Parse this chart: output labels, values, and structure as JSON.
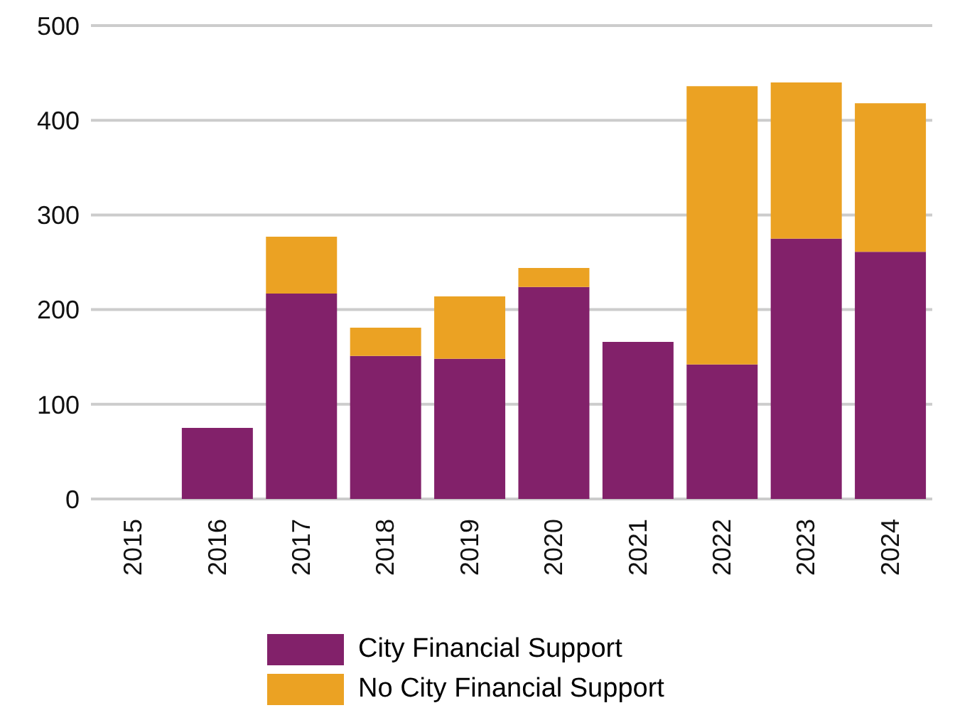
{
  "chart_data": {
    "type": "bar",
    "stacked": true,
    "categories": [
      "2015",
      "2016",
      "2017",
      "2018",
      "2019",
      "2020",
      "2021",
      "2022",
      "2023",
      "2024"
    ],
    "series": [
      {
        "name": "City Financial Support",
        "color": "#82216a",
        "values": [
          0,
          75,
          217,
          151,
          148,
          224,
          166,
          142,
          275,
          261
        ]
      },
      {
        "name": "No City Financial Support",
        "color": "#eba223",
        "values": [
          0,
          0,
          60,
          30,
          66,
          20,
          0,
          294,
          165,
          157
        ]
      }
    ],
    "ylim": [
      0,
      500
    ],
    "yticks": [
      0,
      100,
      200,
      300,
      400,
      500
    ],
    "grid": "y",
    "legend": "bottom"
  }
}
